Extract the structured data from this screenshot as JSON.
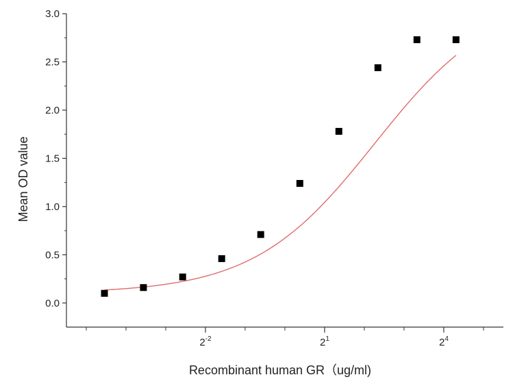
{
  "chart_data": {
    "type": "scatter",
    "xlabel": "Recombinant human GR（ug/ml)",
    "ylabel": "Mean OD value",
    "x_scale": "log2",
    "x_ticks": [
      {
        "base": "2",
        "exp": "-2",
        "value": 0.25
      },
      {
        "base": "2",
        "exp": "1",
        "value": 2
      },
      {
        "base": "2",
        "exp": "4",
        "value": 16
      }
    ],
    "x_minor_ticks": [
      0.03125,
      0.0625,
      0.125,
      0.5,
      1,
      4,
      8,
      32
    ],
    "xlim": [
      0.0221,
      45.3
    ],
    "y_ticks": [
      "0.0",
      "0.5",
      "1.0",
      "1.5",
      "2.0",
      "2.5",
      "3.0"
    ],
    "ylim": [
      -0.25,
      3.0
    ],
    "grid": false,
    "legend": "none",
    "series": [
      {
        "marker": "square",
        "color": "#000000",
        "x": [
          0.0429,
          0.0847,
          0.168,
          0.332,
          0.656,
          1.298,
          2.565,
          5.07,
          10.02,
          19.81
        ],
        "y": [
          0.1,
          0.16,
          0.27,
          0.46,
          0.71,
          1.24,
          1.78,
          2.44,
          2.73,
          2.73
        ]
      }
    ],
    "fit_curve": {
      "model": "4PL",
      "color": "#e06b6b",
      "bottom": 0.1,
      "top": 3.21,
      "ec50": 4.8,
      "hill": 0.95,
      "x_range": [
        0.0429,
        19.81
      ]
    }
  }
}
